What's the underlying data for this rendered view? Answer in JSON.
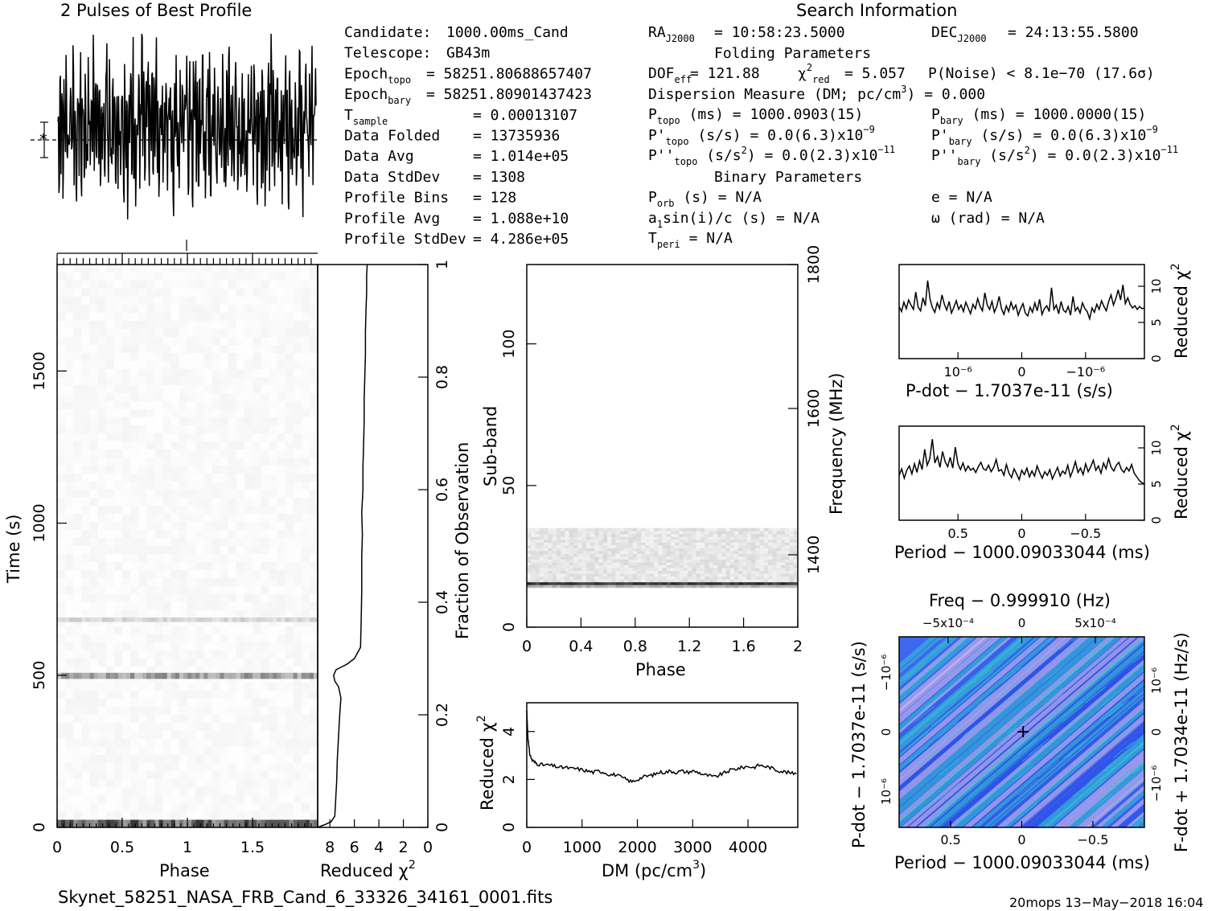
{
  "top": {
    "profile_title": "2 Pulses of Best Profile",
    "search_title": "Search Information",
    "folding_title": "Folding Parameters",
    "binary_title": "Binary Parameters"
  },
  "info_col1": [
    {
      "label": "Candidate:",
      "value": "1000.00ms_Cand"
    },
    {
      "label": "Telescope:",
      "value": "GB43m"
    },
    {
      "label": "Epoch",
      "sub": "topo",
      "value": "= 58251.80688657407"
    },
    {
      "label": "Epoch",
      "sub": "bary",
      "value": "= 58251.80901437423"
    },
    {
      "label": "T",
      "sub": "sample",
      "value": "=   0.00013107"
    },
    {
      "label": "Data Folded",
      "value": "=   13735936"
    },
    {
      "label": "Data Avg",
      "value": "=   1.014e+05"
    },
    {
      "label": "Data StdDev",
      "value": "=   1308"
    },
    {
      "label": "Profile Bins",
      "value": "=   128"
    },
    {
      "label": "Profile Avg",
      "value": "=   1.088e+10"
    },
    {
      "label": "Profile StdDev",
      "value": "=   4.286e+05"
    }
  ],
  "info_col2": {
    "ra": "= 10:58:23.5000",
    "dec": "= 24:13:55.5800",
    "dof": "= 121.88",
    "chi2red": "= 5.057",
    "pnoise": "P(Noise) < 8.1e−70   (17.6σ)",
    "dm": "Dispersion Measure (DM; pc/cm",
    "dm_val": ") = 0.000",
    "ptopo": "(ms) =   1000.0903(15)",
    "pbary": "(ms) =   1000.0000(15)",
    "pdtopo": "(s/s) = 0.0(6.3)x10",
    "pdtopo_exp": "−9",
    "pdbary": "(s/s) = 0.0(6.3)x10",
    "pdbary_exp": "−9",
    "pddtopo": "(s/s",
    "pddtopo_val": ") = 0.0(2.3)x10",
    "pddtopo_exp": "−11",
    "pddbary": "(s/s",
    "pddbary_val": ") = 0.0(2.3)x10",
    "pddbary_exp": "−11",
    "porb": "(s) = N/A",
    "a1": "sin(i)/c (s) = N/A",
    "tperi": "= N/A",
    "e": "e = N/A",
    "omega": "ω (rad) = N/A"
  },
  "footer": {
    "filename": "Skynet_58251_NASA_FRB_Cand_6_33326_34161_0001.fits",
    "stamp": "20mops 13−May−2018 16:04"
  },
  "chart_data": [
    {
      "type": "line",
      "id": "profile",
      "title": "2 Pulses of Best Profile",
      "x_range": [
        0,
        2
      ],
      "bins": 128,
      "values": [
        0.55,
        0.31,
        0.78,
        0.42,
        0.66,
        0.22,
        0.71,
        0.48,
        0.83,
        0.36,
        0.59,
        0.27,
        0.74,
        0.51,
        0.44,
        0.88,
        0.33,
        0.62,
        0.19,
        0.57,
        0.69,
        0.41,
        0.77,
        0.25,
        0.63,
        0.52,
        0.38,
        0.81,
        0.46,
        0.29,
        0.72,
        0.55,
        0.34,
        0.67,
        0.48,
        0.91,
        0.37,
        0.58,
        0.23,
        0.65,
        0.49,
        0.76,
        0.31,
        0.54,
        0.43,
        0.69,
        0.28,
        0.61,
        0.82,
        0.45,
        0.36,
        0.73,
        0.53,
        0.26,
        0.64,
        0.47,
        0.79,
        0.39,
        0.56,
        0.32,
        0.68,
        0.5,
        0.42,
        0.75,
        0.57,
        0.3,
        0.8,
        0.44,
        0.66,
        0.21,
        0.6,
        0.49,
        0.72,
        0.35,
        0.85,
        0.4,
        0.63,
        0.27,
        0.55,
        0.46,
        0.78,
        0.33,
        0.58,
        0.92,
        0.38,
        0.67,
        0.24,
        0.61,
        0.5,
        0.74,
        0.36,
        0.57,
        0.43,
        0.7,
        0.29,
        0.64,
        0.52,
        0.81,
        0.4,
        0.59,
        0.26,
        0.68,
        0.47,
        0.77,
        0.34,
        0.56,
        0.45,
        0.71,
        0.3,
        0.62,
        0.53,
        0.84,
        0.37,
        0.6,
        0.22,
        0.66,
        0.48,
        0.75,
        0.41,
        0.58,
        0.33,
        0.69,
        0.51,
        0.79,
        0.39,
        0.64,
        0.47,
        0.73
      ]
    },
    {
      "type": "heatmap",
      "id": "time_phase",
      "xlabel": "Phase",
      "ylabel": "Time (s)",
      "xlim": [
        0,
        2
      ],
      "ylim": [
        0,
        1850
      ],
      "xticks": [
        "0",
        "0.5",
        "1",
        "1.5"
      ],
      "yticks": [
        "0",
        "500",
        "1000",
        "1500"
      ],
      "dark_bands_s": [
        [
          0,
          25,
          0.75
        ],
        [
          488,
          508,
          0.45
        ],
        [
          675,
          690,
          0.2
        ]
      ]
    },
    {
      "type": "line",
      "id": "time_chi2",
      "xlabel": "Reduced χ²",
      "ylabel": "Fraction of Observation",
      "xlim": [
        9,
        0
      ],
      "ylim": [
        0,
        1
      ],
      "xticks": [
        "8",
        "6",
        "4",
        "2",
        "0"
      ],
      "yticks": [
        "0",
        "0.2",
        "0.4",
        "0.6",
        "0.8",
        "1"
      ],
      "x": [
        9.0,
        8.4,
        7.9,
        7.6,
        7.55,
        7.5,
        7.45,
        7.4,
        7.3,
        7.2,
        7.1,
        7.3,
        7.6,
        7.7,
        7.5,
        6.6,
        6.0,
        5.5,
        5.45,
        5.4,
        5.4,
        5.35,
        5.4,
        5.3,
        5.3,
        5.25,
        5.2,
        5.2,
        5.15,
        5.1,
        5.1,
        5.05,
        5.0,
        5.0,
        4.95
      ],
      "y": [
        0.0,
        0.005,
        0.01,
        0.02,
        0.04,
        0.06,
        0.08,
        0.12,
        0.16,
        0.2,
        0.23,
        0.25,
        0.26,
        0.27,
        0.28,
        0.29,
        0.3,
        0.32,
        0.36,
        0.42,
        0.48,
        0.52,
        0.56,
        0.6,
        0.64,
        0.68,
        0.72,
        0.76,
        0.8,
        0.84,
        0.88,
        0.92,
        0.95,
        0.98,
        1.0
      ]
    },
    {
      "type": "heatmap",
      "id": "subband_phase",
      "xlabel": "Phase",
      "ylabel": "Sub-band",
      "y2label": "Frequency (MHz)",
      "xlim": [
        0,
        2
      ],
      "ylim": [
        0,
        128
      ],
      "xticks": [
        "0",
        "0.4",
        "0.8",
        "1.2",
        "1.6",
        "2"
      ],
      "yticks": [
        "0",
        "50",
        "100"
      ],
      "y2ticks": [
        "1400",
        "1600",
        "1800"
      ],
      "signal_subbands": [
        14,
        35
      ],
      "strongest_subband": 15
    },
    {
      "type": "line",
      "id": "dm_chi2",
      "xlabel": "DM (pc/cm³)",
      "ylabel": "Reduced χ²",
      "xlim": [
        0,
        4900
      ],
      "ylim": [
        0,
        5.2
      ],
      "xticks": [
        "0",
        "1000",
        "2000",
        "3000",
        "4000"
      ],
      "yticks": [
        "0",
        "2",
        "4"
      ],
      "x": [
        0,
        20,
        40,
        60,
        100,
        150,
        200,
        300,
        400,
        500,
        600,
        700,
        800,
        900,
        1000,
        1100,
        1200,
        1300,
        1400,
        1500,
        1600,
        1700,
        1800,
        1900,
        2000,
        2100,
        2200,
        2300,
        2400,
        2500,
        2600,
        2700,
        2800,
        2900,
        3000,
        3100,
        3200,
        3300,
        3400,
        3500,
        3600,
        3700,
        3800,
        3900,
        4000,
        4100,
        4200,
        4300,
        4400,
        4500,
        4600,
        4700,
        4800,
        4900
      ],
      "y": [
        4.9,
        3.8,
        3.3,
        3.0,
        2.8,
        2.7,
        2.65,
        2.6,
        2.6,
        2.55,
        2.5,
        2.5,
        2.45,
        2.45,
        2.4,
        2.35,
        2.3,
        2.35,
        2.3,
        2.2,
        2.2,
        2.1,
        2.0,
        1.9,
        2.0,
        2.1,
        2.15,
        2.2,
        2.3,
        2.3,
        2.35,
        2.3,
        2.35,
        2.3,
        2.35,
        2.3,
        2.2,
        2.15,
        2.1,
        2.2,
        2.3,
        2.4,
        2.45,
        2.5,
        2.55,
        2.5,
        2.6,
        2.55,
        2.5,
        2.4,
        2.35,
        2.3,
        2.25,
        2.3
      ]
    },
    {
      "type": "line",
      "id": "pdot_chi2",
      "xlabel": "P-dot − 1.7037e-11 (s/s)",
      "ylabel": "Reduced χ²",
      "xticks": [
        "10⁻⁶",
        "0",
        "−10⁻⁶"
      ],
      "yticks": [
        "0",
        "5",
        "10"
      ],
      "ylim": [
        0,
        13
      ],
      "values": [
        7.2,
        6.5,
        7.8,
        6.9,
        8.1,
        7.4,
        6.8,
        9.2,
        7.1,
        6.6,
        8.4,
        7.3,
        10.8,
        8.2,
        7.0,
        6.4,
        7.7,
        6.9,
        8.8,
        7.5,
        6.7,
        7.9,
        6.3,
        7.1,
        8.0,
        6.8,
        7.4,
        6.5,
        7.8,
        7.0,
        6.2,
        7.5,
        6.9,
        8.3,
        7.2,
        6.6,
        9.1,
        7.4,
        6.8,
        7.9,
        6.4,
        7.2,
        8.6,
        6.9,
        6.1,
        7.3,
        6.5,
        7.8,
        6.8,
        7.4,
        6.0,
        6.9,
        7.6,
        6.3,
        5.9,
        7.1,
        6.4,
        7.7,
        6.6,
        8.2,
        6.1,
        6.9,
        7.3,
        6.5,
        9.8,
        6.8,
        7.4,
        6.2,
        7.9,
        6.7,
        6.4,
        7.2,
        6.0,
        8.6,
        6.6,
        7.1,
        6.3,
        7.7,
        6.9,
        6.5,
        5.5,
        7.0,
        6.4,
        7.5,
        6.8,
        8.0,
        7.2,
        6.6,
        7.9,
        8.8,
        7.4,
        8.3,
        9.5,
        8.1,
        10.2,
        7.6,
        8.4,
        7.5,
        7.0,
        7.3,
        6.8,
        7.2,
        6.9,
        7.0
      ]
    },
    {
      "type": "line",
      "id": "period_chi2",
      "xlabel": "Period − 1000.09033044 (ms)",
      "ylabel": "Reduced χ²",
      "xticks": [
        "0.5",
        "0",
        "−0.5"
      ],
      "yticks": [
        "0",
        "5",
        "10"
      ],
      "ylim": [
        0,
        13
      ],
      "values": [
        6.2,
        7.1,
        5.8,
        6.9,
        7.5,
        6.4,
        7.8,
        6.6,
        8.2,
        7.0,
        9.8,
        7.6,
        8.5,
        11.2,
        7.9,
        8.8,
        7.3,
        9.5,
        8.1,
        7.4,
        8.7,
        7.2,
        10.1,
        7.8,
        7.0,
        7.9,
        6.8,
        7.5,
        6.9,
        7.2,
        6.6,
        7.4,
        8.0,
        7.1,
        6.9,
        7.6,
        6.7,
        7.3,
        8.4,
        6.8,
        7.0,
        6.2,
        7.7,
        6.5,
        5.9,
        7.1,
        6.4,
        5.6,
        6.9,
        6.3,
        7.2,
        6.0,
        6.8,
        6.1,
        7.5,
        6.6,
        5.8,
        6.7,
        6.2,
        7.0,
        5.7,
        6.5,
        7.3,
        6.1,
        6.8,
        6.4,
        7.6,
        6.0,
        6.9,
        8.1,
        6.6,
        7.2,
        6.3,
        7.8,
        6.7,
        7.4,
        8.3,
        6.9,
        7.5,
        6.5,
        7.9,
        7.1,
        8.5,
        7.3,
        6.8,
        7.6,
        8.0,
        7.0,
        6.6,
        7.3,
        6.8,
        7.7,
        6.5,
        6.0,
        5.5,
        5.2,
        5.0
      ]
    },
    {
      "type": "heatmap",
      "id": "ppdot",
      "title": "Freq − 0.999910 (Hz)",
      "xlabel": "Period − 1000.09033044 (ms)",
      "ylabel": "P-dot − 1.7037e-11 (s/s)",
      "y2label": "F-dot + 1.7034e-11 (Hz/s)",
      "xticks": [
        "0.5",
        "0",
        "−0.5"
      ],
      "x2ticks": [
        "−5x10⁻⁴",
        "0",
        "5x10⁻⁴"
      ],
      "yticks": [
        "10⁻⁶",
        "0",
        "−10⁻⁶"
      ],
      "y2ticks": [
        "−10⁻⁶",
        "0",
        "10⁻⁶"
      ],
      "best_marker": [
        0,
        0
      ],
      "colors": {
        "low": "#2b4fe8",
        "mid": "#35c9d0",
        "high": "#e4c6ec"
      }
    }
  ]
}
